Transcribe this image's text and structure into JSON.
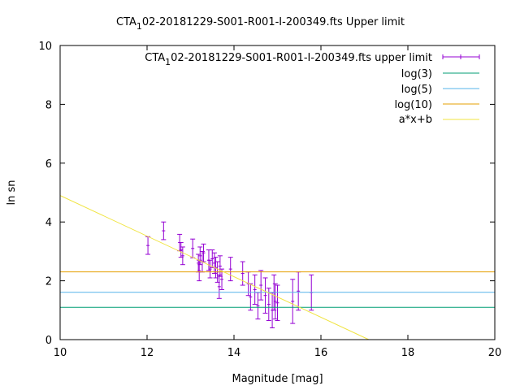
{
  "chart_data": {
    "type": "scatter",
    "title_prefix": "CTA",
    "title_sub": "1",
    "title_suffix": "02-20181229-S001-R001-I-200349.fts Upper limit",
    "xlabel": "Magnitude [mag]",
    "ylabel": "ln sn",
    "xlim": [
      10,
      20
    ],
    "ylim": [
      0,
      10
    ],
    "xticks": [
      "10",
      "12",
      "14",
      "16",
      "18",
      "20"
    ],
    "yticks": [
      "0",
      "2",
      "4",
      "6",
      "8",
      "10"
    ],
    "grid": false,
    "legend_position": "top-right",
    "colors": {
      "points": "#9400d3",
      "log3": "#009e73",
      "log5": "#56b4e9",
      "log10": "#e69f00",
      "fit": "#f0e442"
    },
    "legend": {
      "points_prefix": "CTA",
      "points_sub": "1",
      "points_suffix": "02-20181229-S001-R001-I-200349.fts upper limit",
      "log3": "log(3)",
      "log5": "log(5)",
      "log10": "log(10)",
      "fit": "a*x+b"
    },
    "hlines": {
      "log3": 1.0986,
      "log5": 1.6094,
      "log10": 2.3026
    },
    "fit_line": {
      "slope": -0.69,
      "intercept": 11.8
    },
    "series": [
      {
        "x": [
          12.02,
          12.38,
          12.75,
          12.78,
          12.82,
          13.05,
          13.18,
          13.2,
          13.22,
          13.27,
          13.3,
          13.42,
          13.45,
          13.5,
          13.55,
          13.58,
          13.62,
          13.66,
          13.68,
          13.72,
          13.92,
          14.2,
          14.33,
          14.38,
          14.48,
          14.55,
          14.62,
          14.72,
          14.8,
          14.88,
          14.92,
          14.95,
          15.0,
          15.35,
          15.48,
          15.78
        ],
        "y": [
          3.2,
          3.7,
          3.3,
          3.05,
          2.85,
          3.1,
          2.6,
          2.35,
          2.85,
          2.65,
          2.95,
          2.7,
          2.4,
          2.75,
          2.6,
          2.45,
          2.3,
          1.8,
          2.5,
          2.05,
          2.4,
          2.25,
          1.9,
          1.45,
          1.7,
          1.15,
          1.85,
          1.5,
          1.2,
          1.0,
          1.6,
          1.3,
          1.25,
          1.3,
          1.65,
          1.6
        ],
        "err": [
          0.3,
          0.3,
          0.28,
          0.25,
          0.3,
          0.32,
          0.3,
          0.35,
          0.3,
          0.35,
          0.3,
          0.35,
          0.3,
          0.3,
          0.35,
          0.35,
          0.35,
          0.4,
          0.35,
          0.35,
          0.4,
          0.4,
          0.4,
          0.45,
          0.5,
          0.45,
          0.5,
          0.6,
          0.55,
          0.6,
          0.6,
          0.6,
          0.6,
          0.75,
          0.65,
          0.6
        ]
      }
    ]
  }
}
